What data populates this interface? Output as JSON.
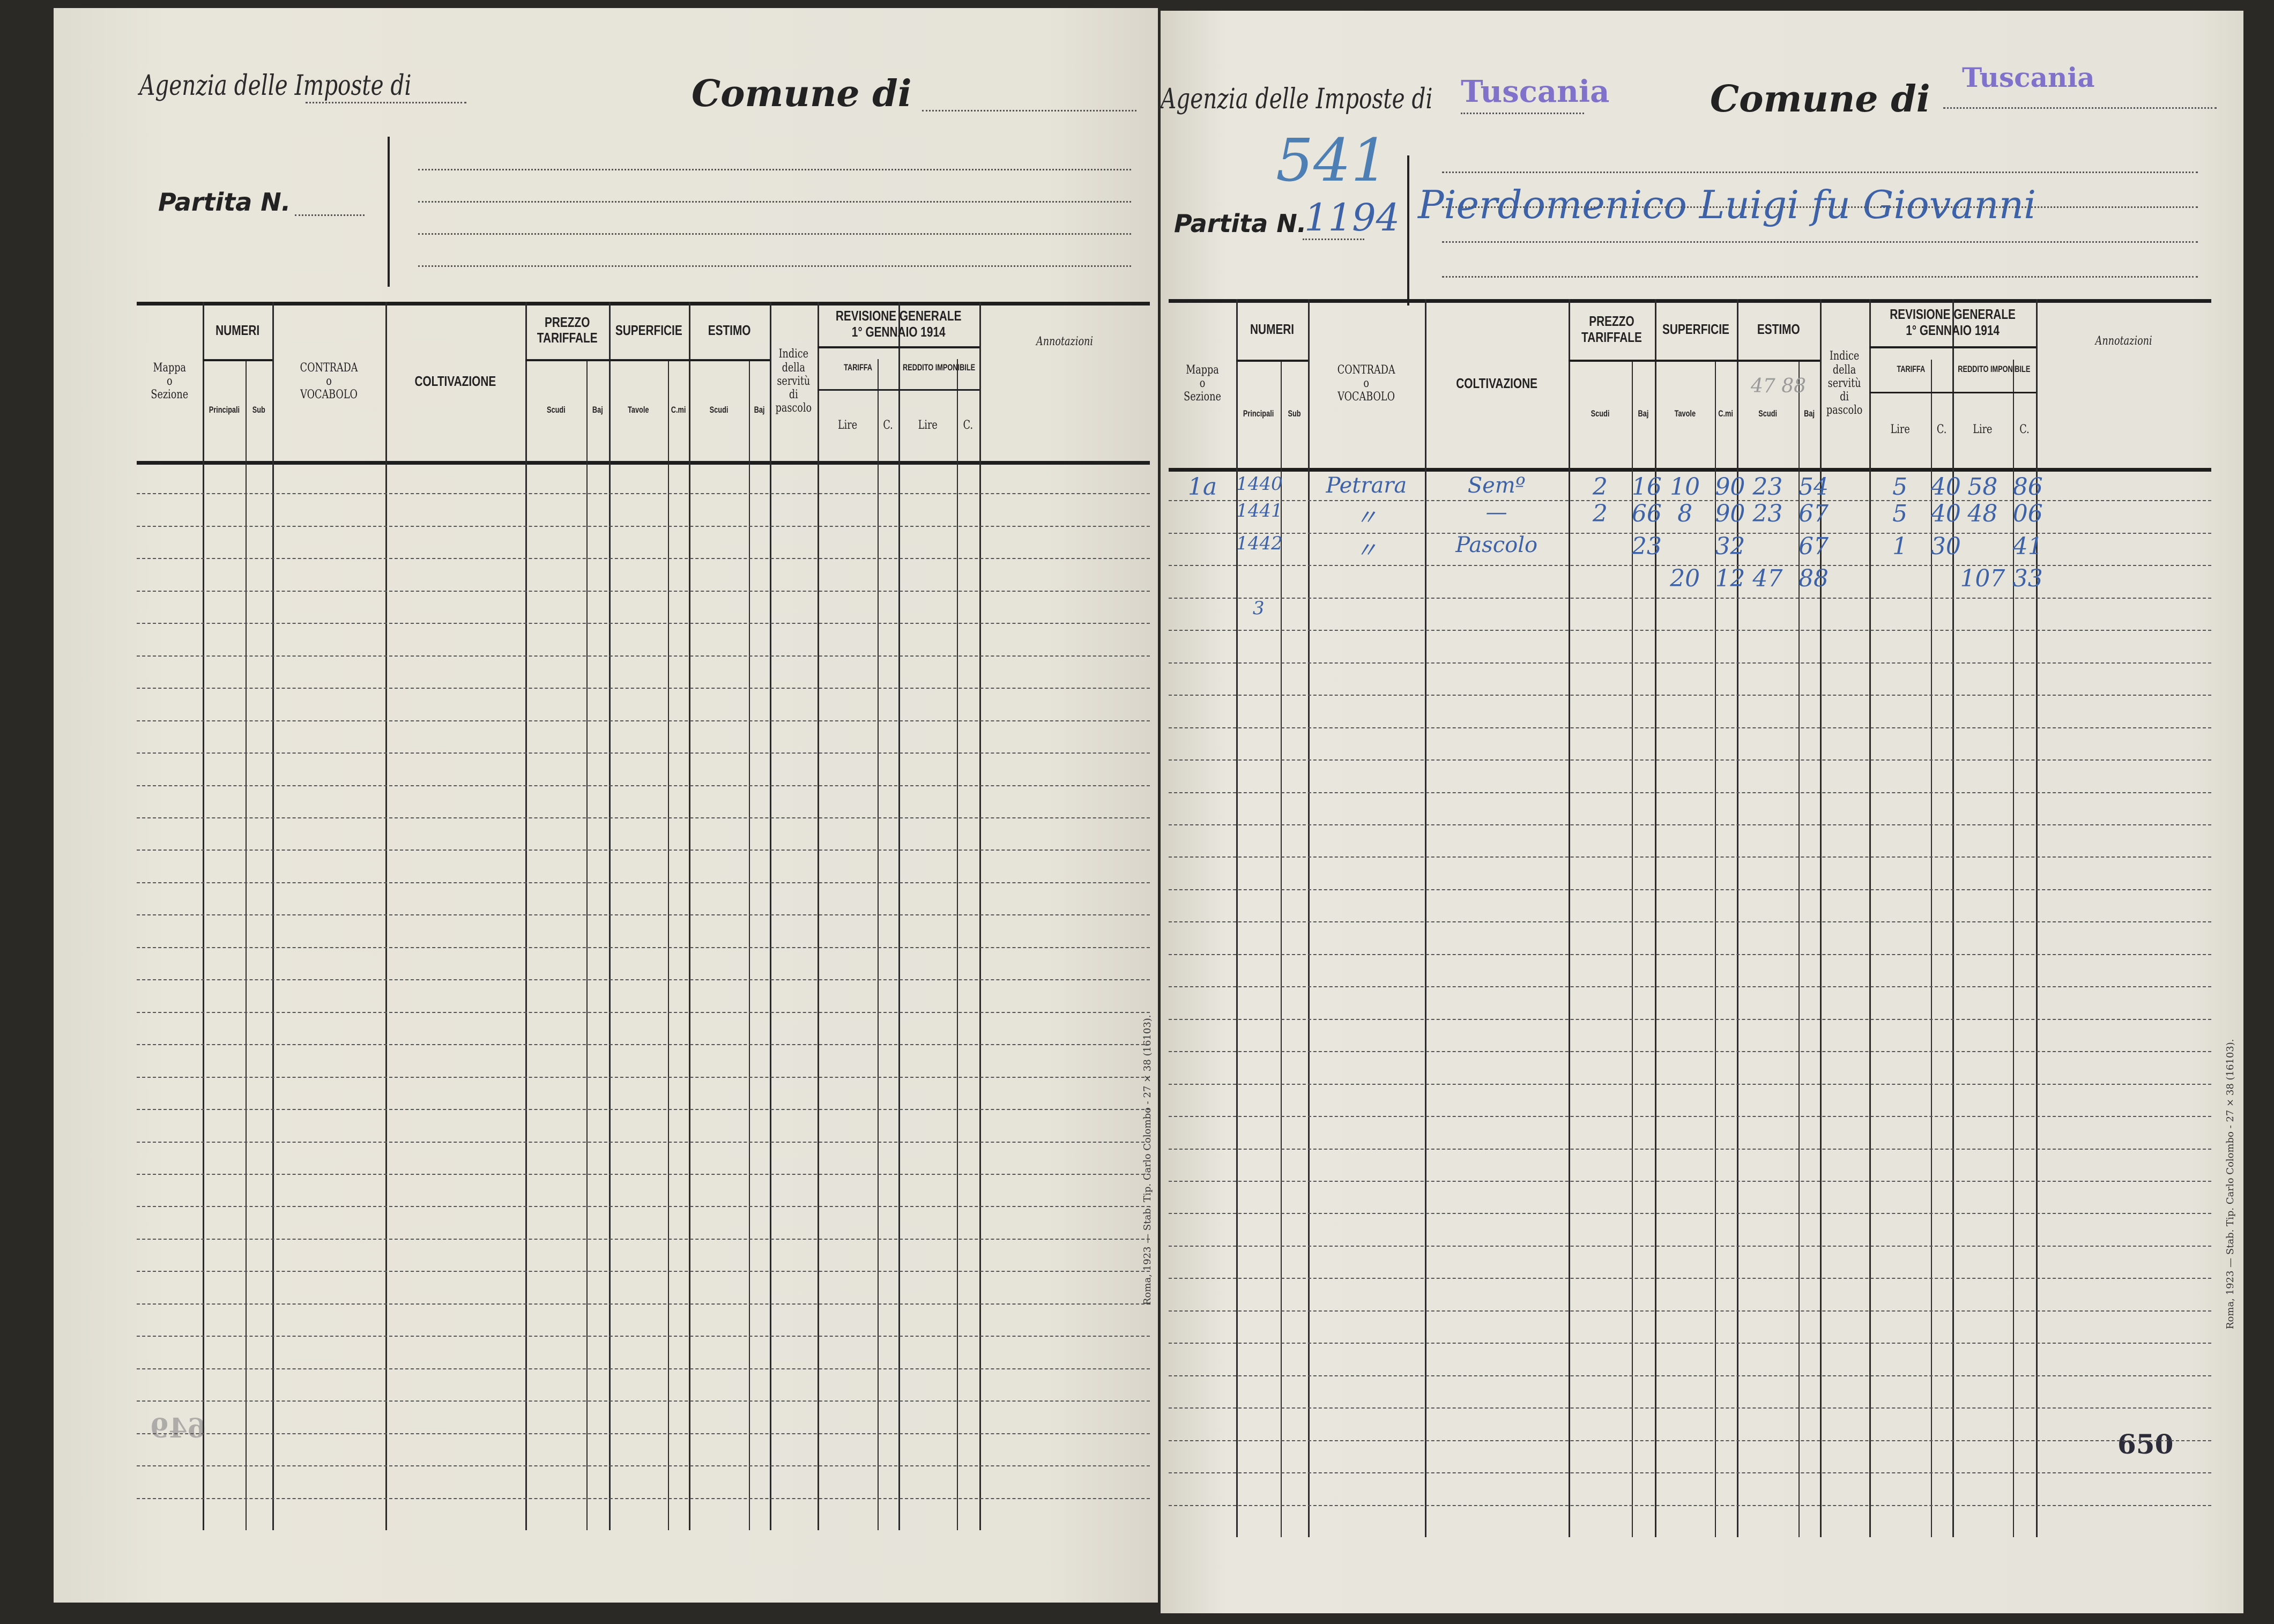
{
  "left_page": {
    "agency_label": "Agenzia delle Imposte di",
    "comune_label": "Comune di",
    "partita_label": "Partita N.",
    "imprint": "Roma, 1923 — Stab. Tip. Carlo Colombo - 27 × 38 (16103).",
    "page_number": "649"
  },
  "right_page": {
    "agency_label": "Agenzia delle Imposte di",
    "agency_stamp": "Tuscania",
    "comune_label": "Comune di",
    "comune_stamp": "Tuscania",
    "partita_label": "Partita N.",
    "partita_number": "1194",
    "partita_old_number": "541",
    "owner_name": "Pierdomenico Luigi fu Giovanni",
    "pencil_note": "47 88",
    "imprint": "Roma, 1923 — Stab. Tip. Carlo Colombo - 27 × 38 (16103).",
    "page_number": "650",
    "entries": [
      {
        "mappa": "1a",
        "principali": "1440",
        "sub": "",
        "contrada": "Petrara",
        "coltivazione": "Semº",
        "prezzo_scudi": "2",
        "prezzo_baj": "16",
        "sup_tavole": "10",
        "sup_cmi": "90",
        "estimo_scudi": "23",
        "estimo_baj": "54",
        "indice": "",
        "tariffa_lire": "5",
        "tariffa_c": "40",
        "reddito_lire": "58",
        "reddito_c": "86"
      },
      {
        "mappa": "",
        "principali": "1441",
        "sub": "",
        "contrada": "〃",
        "coltivazione": "—",
        "prezzo_scudi": "2",
        "prezzo_baj": "66",
        "sup_tavole": "8",
        "sup_cmi": "90",
        "estimo_scudi": "23",
        "estimo_baj": "67",
        "indice": "",
        "tariffa_lire": "5",
        "tariffa_c": "40",
        "reddito_lire": "48",
        "reddito_c": "06"
      },
      {
        "mappa": "",
        "principali": "1442",
        "sub": "",
        "contrada": "〃",
        "coltivazione": "Pascolo",
        "prezzo_scudi": "",
        "prezzo_baj": "23",
        "sup_tavole": "",
        "sup_cmi": "32",
        "estimo_scudi": "",
        "estimo_baj": "67",
        "indice": "",
        "tariffa_lire": "1",
        "tariffa_c": "30",
        "reddito_lire": "",
        "reddito_c": "41"
      },
      {
        "mappa": "",
        "principali": "",
        "sub": "",
        "contrada": "",
        "coltivazione": "",
        "prezzo_scudi": "",
        "prezzo_baj": "",
        "sup_tavole": "20",
        "sup_cmi": "12",
        "estimo_scudi": "47",
        "estimo_baj": "88",
        "indice": "",
        "tariffa_lire": "",
        "tariffa_c": "",
        "reddito_lire": "107",
        "reddito_c": "33"
      },
      {
        "mappa": "",
        "principali": "3",
        "sub": "",
        "contrada": "",
        "coltivazione": "",
        "prezzo_scudi": "",
        "prezzo_baj": "",
        "sup_tavole": "",
        "sup_cmi": "",
        "estimo_scudi": "",
        "estimo_baj": "",
        "indice": "",
        "tariffa_lire": "",
        "tariffa_c": "",
        "reddito_lire": "",
        "reddito_c": ""
      }
    ]
  },
  "table_header": {
    "mappa": "Mappa\no\nSezione",
    "numeri": "NUMERI",
    "principali": "Principali",
    "sub": "Sub",
    "contrada": "CONTRADA\no\nVOCABOLO",
    "coltivazione": "COLTIVAZIONE",
    "prezzo": "PREZZO\nTARIFFALE",
    "superficie": "SUPERFICIE",
    "estimo": "ESTIMO",
    "scudi": "Scudi",
    "baj": "Baj",
    "tavole": "Tavole",
    "cmi": "C.mi",
    "indice": "Indice\ndella\nservitù\ndi\npascolo",
    "revisione": "REVISIONE GENERALE\n1° GENNAIO 1914",
    "tariffa": "TARIFFA",
    "reddito": "REDDITO IMPONIBILE",
    "lire": "Lire",
    "c": "C.",
    "annotazioni": "Annotazioni"
  }
}
